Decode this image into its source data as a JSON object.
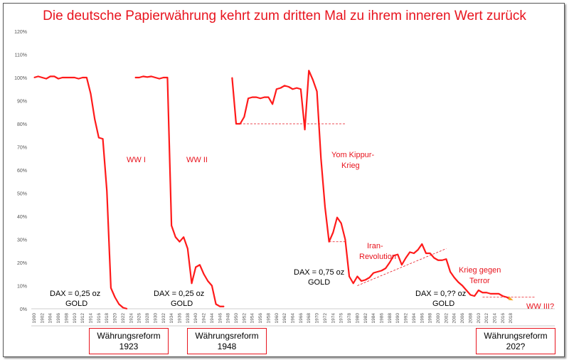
{
  "title": "Die deutsche Papierwährung kehrt zum dritten Mal zu ihrem inneren Wert zurück",
  "boxes": [
    {
      "line1": "Währungsreform",
      "line2": "1923"
    },
    {
      "line1": "Währungsreform",
      "line2": "1948"
    },
    {
      "line1": "Währungsreform",
      "line2": "202?"
    }
  ],
  "colors": {
    "line": "#ff1a1a",
    "text": "#e8141e",
    "axis": "#888888"
  },
  "chart_data": {
    "type": "line",
    "title": "Die deutsche Papierwährung kehrt zum dritten Mal zu ihrem inneren Wert zurück",
    "xlabel": "",
    "ylabel": "",
    "xlim": [
      1900,
      2019
    ],
    "ylim": [
      0,
      120
    ],
    "yticks": [
      "0%",
      "10%",
      "20%",
      "30%",
      "40%",
      "50%",
      "60%",
      "70%",
      "80%",
      "90%",
      "100%",
      "110%",
      "120%"
    ],
    "xticks": [
      1900,
      1902,
      1904,
      1906,
      1908,
      1910,
      1912,
      1914,
      1916,
      1918,
      1920,
      1922,
      1924,
      1926,
      1928,
      1930,
      1932,
      1934,
      1936,
      1938,
      1940,
      1942,
      1944,
      1946,
      1948,
      1950,
      1952,
      1954,
      1956,
      1958,
      1960,
      1962,
      1964,
      1966,
      1968,
      1970,
      1972,
      1974,
      1976,
      1978,
      1980,
      1982,
      1984,
      1986,
      1988,
      1990,
      1992,
      1994,
      1996,
      1998,
      2000,
      2002,
      2004,
      2006,
      2008,
      2010,
      2012,
      2014,
      2016,
      2018
    ],
    "series": [
      {
        "name": "Segment 1900-1923",
        "x": [
          1900,
          1901,
          1902,
          1903,
          1904,
          1905,
          1906,
          1907,
          1908,
          1909,
          1910,
          1911,
          1912,
          1913,
          1914,
          1915,
          1916,
          1917,
          1918,
          1919,
          1920,
          1921,
          1922,
          1923
        ],
        "values": [
          100,
          100.5,
          100,
          99.5,
          100.5,
          100.5,
          99.5,
          100,
          100,
          100,
          100,
          99.5,
          100,
          100,
          93,
          82,
          74,
          73.5,
          51,
          9,
          5,
          2,
          0.5,
          0
        ]
      },
      {
        "name": "Segment 1925-1947",
        "x": [
          1925,
          1926,
          1927,
          1928,
          1929,
          1930,
          1931,
          1932,
          1933,
          1934,
          1935,
          1936,
          1937,
          1938,
          1939,
          1940,
          1941,
          1942,
          1943,
          1944,
          1945,
          1946,
          1947
        ],
        "values": [
          100,
          100,
          100.5,
          100.2,
          100.5,
          100,
          99.5,
          100,
          100,
          36,
          31,
          29,
          31,
          26,
          11,
          18,
          19,
          15,
          12,
          10,
          2,
          1,
          1
        ]
      },
      {
        "name": "Segment 1949-2018",
        "x": [
          1949,
          1950,
          1951,
          1952,
          1953,
          1954,
          1955,
          1956,
          1957,
          1958,
          1959,
          1960,
          1961,
          1962,
          1963,
          1964,
          1965,
          1966,
          1967,
          1968,
          1969,
          1970,
          1971,
          1972,
          1973,
          1974,
          1975,
          1976,
          1977,
          1978,
          1979,
          1980,
          1981,
          1982,
          1983,
          1984,
          1985,
          1986,
          1987,
          1988,
          1989,
          1990,
          1991,
          1992,
          1993,
          1994,
          1995,
          1996,
          1997,
          1998,
          1999,
          2000,
          2001,
          2002,
          2003,
          2004,
          2005,
          2006,
          2007,
          2008,
          2009,
          2010,
          2011,
          2012,
          2013,
          2014,
          2015,
          2016,
          2017,
          2018
        ],
        "values": [
          100,
          80,
          80,
          83,
          91,
          91.5,
          91.5,
          91,
          91.5,
          91.5,
          88.5,
          95,
          95.5,
          96.5,
          96,
          95,
          95.5,
          95,
          77.5,
          103,
          99,
          94,
          65,
          44,
          29,
          33,
          39.5,
          37,
          30,
          14,
          11,
          14,
          12,
          12.5,
          13.5,
          15.5,
          16,
          16.5,
          17.5,
          20,
          23,
          23.5,
          19,
          22,
          24.5,
          24,
          25.5,
          28,
          24,
          24,
          22,
          21,
          21,
          21.5,
          16,
          13.5,
          11.5,
          10,
          8,
          6,
          5.5,
          8,
          7,
          7,
          6.5,
          6.5,
          6.5,
          5.5,
          5,
          4
        ]
      }
    ],
    "reference_lines": [
      {
        "from": [
          1950,
          80
        ],
        "to": [
          1977,
          80
        ]
      },
      {
        "from": [
          1973,
          29
        ],
        "to": [
          1977,
          29
        ]
      },
      {
        "from": [
          1980,
          10
        ],
        "to": [
          2002,
          26
        ]
      },
      {
        "from": [
          2011,
          5
        ],
        "to": [
          2024,
          5
        ]
      }
    ],
    "annotations": [
      {
        "id": "ww1",
        "text": "WW I"
      },
      {
        "id": "ww2",
        "text": "WW II"
      },
      {
        "id": "yk1",
        "text": "Yom Kippur-"
      },
      {
        "id": "yk2",
        "text": "Krieg"
      },
      {
        "id": "ir1",
        "text": "Iran-"
      },
      {
        "id": "ir2",
        "text": "Revolution"
      },
      {
        "id": "kt1",
        "text": "Krieg gegen"
      },
      {
        "id": "kt2",
        "text": "Terror"
      },
      {
        "id": "ww3",
        "text": "WW III?"
      },
      {
        "id": "dax1a",
        "text": "DAX = 0,25 oz"
      },
      {
        "id": "dax1b",
        "text": "GOLD"
      },
      {
        "id": "dax2a",
        "text": "DAX = 0,25 oz"
      },
      {
        "id": "dax2b",
        "text": "GOLD"
      },
      {
        "id": "dax3a",
        "text": "DAX = 0,75 oz"
      },
      {
        "id": "dax3b",
        "text": "GOLD"
      },
      {
        "id": "dax4a",
        "text": "DAX = 0,?? oz"
      },
      {
        "id": "dax4b",
        "text": "GOLD"
      }
    ]
  }
}
